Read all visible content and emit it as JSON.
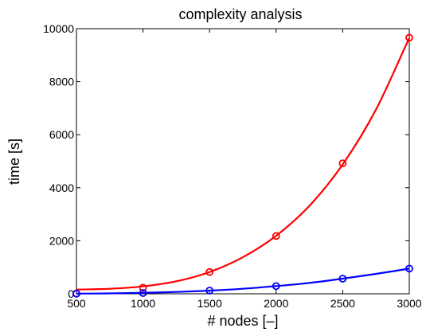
{
  "chart_data": {
    "type": "scatter",
    "title": "complexity analysis",
    "xlabel": "# nodes [–]",
    "ylabel": "time [s]",
    "xlim": [
      500,
      3000
    ],
    "ylim": [
      0,
      10000
    ],
    "xticks": [
      "500",
      "1000",
      "1500",
      "2000",
      "2500",
      "3000"
    ],
    "yticks": [
      "0",
      "2000",
      "4000",
      "6000",
      "8000",
      "10000"
    ],
    "grid": false,
    "legend": "none",
    "series": [
      {
        "color": "#ff0000",
        "marker": "circle",
        "x": [
          500,
          1000,
          1500,
          2000,
          2500,
          3000
        ],
        "y": [
          10,
          230,
          820,
          2180,
          4920,
          9660
        ],
        "fit_x": [
          500,
          750,
          1000,
          1250,
          1500,
          1750,
          2000,
          2250,
          2500,
          2750,
          3000
        ],
        "fit_y": [
          160,
          190,
          280,
          470,
          820,
          1380,
          2190,
          3320,
          4880,
          6950,
          9650
        ]
      },
      {
        "color": "#0000ff",
        "marker": "circle",
        "x": [
          500,
          1000,
          1500,
          2000,
          2500,
          3000
        ],
        "y": [
          5,
          30,
          120,
          290,
          570,
          950
        ],
        "fit_x": [
          500,
          750,
          1000,
          1250,
          1500,
          1750,
          2000,
          2250,
          2500,
          2750,
          3000
        ],
        "fit_y": [
          5,
          15,
          40,
          70,
          120,
          190,
          290,
          410,
          570,
          750,
          950
        ]
      }
    ]
  }
}
